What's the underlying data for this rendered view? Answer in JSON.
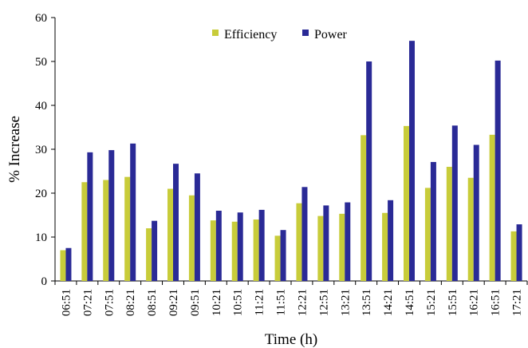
{
  "chart_data": {
    "type": "bar",
    "title": "",
    "xlabel": "Time (h)",
    "ylabel": "% Increase",
    "ylim": [
      0,
      60
    ],
    "yticks": [
      0,
      10,
      20,
      30,
      40,
      50,
      60
    ],
    "grid": false,
    "legend_position": "top-center",
    "categories": [
      "06:51",
      "07:21",
      "07:51",
      "08:21",
      "08:51",
      "09:21",
      "09:51",
      "10:21",
      "10:51",
      "11:21",
      "11:51",
      "12:21",
      "12:51",
      "13:21",
      "13:51",
      "14:21",
      "14:51",
      "15:21",
      "15:51",
      "16:21",
      "16:51",
      "17:21"
    ],
    "series": [
      {
        "name": "Efficiency",
        "color": "#c8cc3a",
        "values": [
          7.0,
          22.5,
          23.0,
          23.7,
          12.0,
          21.0,
          19.5,
          13.8,
          13.5,
          14.0,
          10.3,
          17.7,
          14.8,
          15.3,
          33.2,
          15.5,
          35.3,
          21.2,
          26.0,
          23.5,
          33.3,
          11.3
        ]
      },
      {
        "name": "Power",
        "color": "#2a2a96",
        "values": [
          7.5,
          29.3,
          29.8,
          31.3,
          13.7,
          26.7,
          24.5,
          16.0,
          15.6,
          16.2,
          11.6,
          21.4,
          17.2,
          17.9,
          50.0,
          18.4,
          54.7,
          27.1,
          35.4,
          31.0,
          50.2,
          12.9
        ]
      }
    ]
  }
}
